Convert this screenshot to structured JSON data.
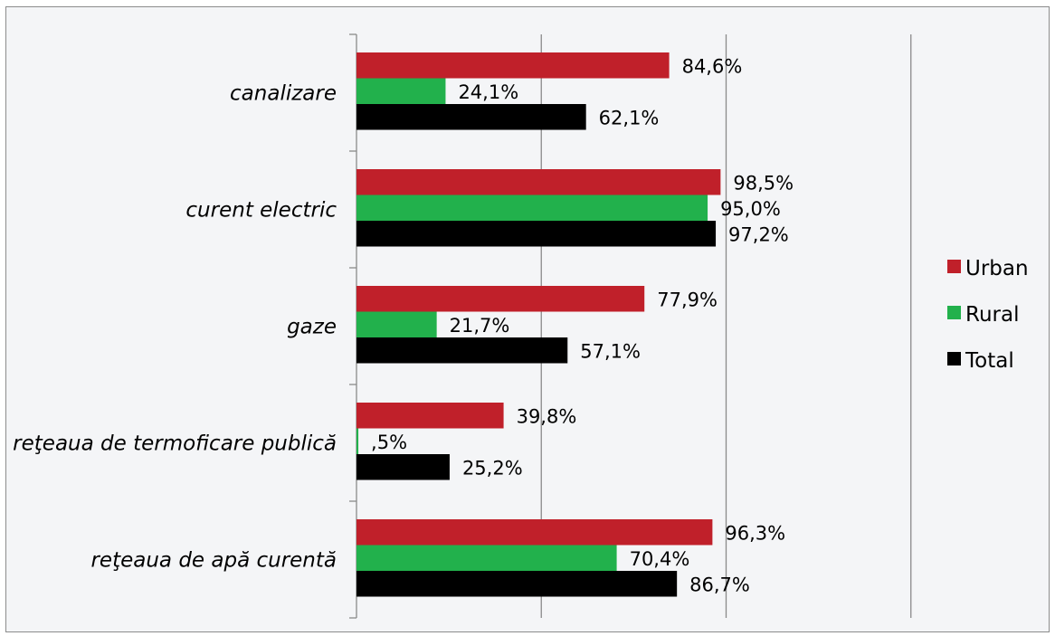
{
  "chart_data": {
    "type": "bar",
    "orientation": "horizontal",
    "categories": [
      "canalizare",
      "curent electric",
      "gaze",
      "reţeaua de termoficare publică",
      "reţeaua de apă curentă"
    ],
    "series": [
      {
        "name": "Urban",
        "color": "#c0202a",
        "values": [
          84.6,
          98.5,
          77.9,
          39.8,
          96.3
        ],
        "labels": [
          "84,6%",
          "98,5%",
          "77,9%",
          "39,8%",
          "96,3%"
        ]
      },
      {
        "name": "Rural",
        "color": "#22b14c",
        "values": [
          24.1,
          95.0,
          21.7,
          0.5,
          70.4
        ],
        "labels": [
          "24,1%",
          "95,0%",
          "21,7%",
          ",5%",
          "70,4%"
        ]
      },
      {
        "name": "Total",
        "color": "#000000",
        "values": [
          62.1,
          97.2,
          57.1,
          25.2,
          86.7
        ],
        "labels": [
          "62,1%",
          "97,2%",
          "57,1%",
          "25,2%",
          "86,7%"
        ]
      }
    ],
    "xlim": [
      0,
      150
    ],
    "gridlines_x": [
      50,
      100,
      150
    ],
    "grid": true,
    "legend_position": "right"
  }
}
